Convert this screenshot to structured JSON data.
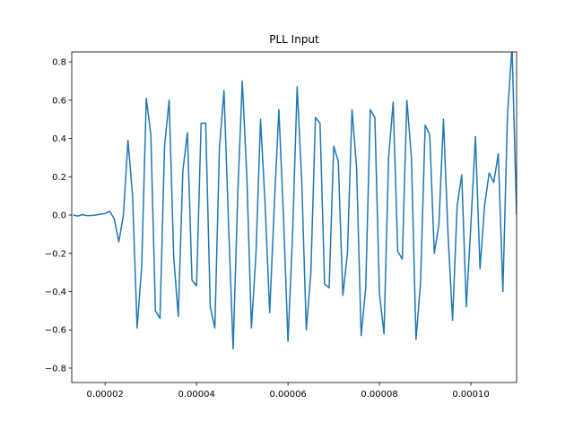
{
  "chart_data": {
    "type": "line",
    "title": "PLL Input",
    "x": [
      1.3e-05,
      1.4e-05,
      1.5e-05,
      1.6e-05,
      1.7e-05,
      1.8e-05,
      1.9e-05,
      2e-05,
      2.1e-05,
      2.2e-05,
      2.3e-05,
      2.4e-05,
      2.5e-05,
      2.6e-05,
      2.7e-05,
      2.8e-05,
      2.9e-05,
      3e-05,
      3.1e-05,
      3.2e-05,
      3.3e-05,
      3.4e-05,
      3.5e-05,
      3.6e-05,
      3.7e-05,
      3.8e-05,
      3.9e-05,
      4e-05,
      4.1e-05,
      4.2e-05,
      4.3e-05,
      4.4e-05,
      4.5e-05,
      4.6e-05,
      4.7e-05,
      4.8e-05,
      4.9e-05,
      5e-05,
      5.1e-05,
      5.2e-05,
      5.3e-05,
      5.4e-05,
      5.5e-05,
      5.6e-05,
      5.7e-05,
      5.8e-05,
      5.9e-05,
      6e-05,
      6.1e-05,
      6.2e-05,
      6.3e-05,
      6.4e-05,
      6.5e-05,
      6.6e-05,
      6.7e-05,
      6.8e-05,
      6.9e-05,
      7e-05,
      7.1e-05,
      7.2e-05,
      7.3e-05,
      7.4e-05,
      7.5e-05,
      7.6e-05,
      7.7e-05,
      7.8e-05,
      7.9e-05,
      8e-05,
      8.1e-05,
      8.2e-05,
      8.3e-05,
      8.4e-05,
      8.5e-05,
      8.6e-05,
      8.7e-05,
      8.8e-05,
      8.9e-05,
      9e-05,
      9.1e-05,
      9.2e-05,
      9.3e-05,
      9.4e-05,
      9.5e-05,
      9.6e-05,
      9.7e-05,
      9.8e-05,
      9.9e-05,
      0.0001,
      0.000101,
      0.000102,
      0.000103,
      0.000104,
      0.000105,
      0.000106,
      0.000107,
      0.000108,
      0.000109,
      0.00011
    ],
    "series": [
      {
        "color": "#1f77b4",
        "values": [
          0,
          -0.005,
          0.002,
          -0.003,
          -0.002,
          0,
          0.005,
          0.008,
          0.02,
          -0.02,
          -0.14,
          0.0,
          0.39,
          0.1,
          -0.59,
          -0.27,
          0.61,
          0.42,
          -0.5,
          -0.54,
          0.36,
          0.6,
          -0.22,
          -0.53,
          0.23,
          0.43,
          -0.34,
          -0.37,
          0.48,
          0.48,
          -0.48,
          -0.59,
          0.35,
          0.65,
          -0.05,
          -0.7,
          0.1,
          0.7,
          0.2,
          -0.59,
          -0.2,
          0.5,
          0.05,
          -0.51,
          0.05,
          0.55,
          0.0,
          -0.66,
          -0.1,
          0.67,
          0.18,
          -0.6,
          -0.3,
          0.51,
          0.48,
          -0.36,
          -0.38,
          0.36,
          0.28,
          -0.42,
          -0.2,
          0.55,
          0.25,
          -0.63,
          -0.38,
          0.55,
          0.51,
          -0.41,
          -0.62,
          0.3,
          0.59,
          -0.19,
          -0.23,
          0.6,
          0.3,
          -0.65,
          -0.35,
          0.47,
          0.42,
          -0.2,
          -0.05,
          0.5,
          -0.1,
          -0.55,
          0.05,
          0.21,
          -0.48,
          -0.05,
          0.41,
          -0.28,
          0.05,
          0.22,
          0.17,
          0.32,
          -0.4,
          0.52,
          0.88,
          0.0
        ]
      }
    ],
    "xlim": [
      1.27e-05,
      0.00011
    ],
    "xticks": [
      {
        "value": 2e-05,
        "label": "0.00002"
      },
      {
        "value": 4e-05,
        "label": "0.00004"
      },
      {
        "value": 6e-05,
        "label": "0.00006"
      },
      {
        "value": 8e-05,
        "label": "0.00008"
      },
      {
        "value": 0.0001,
        "label": "0.00010"
      }
    ],
    "ylim": [
      -0.875,
      0.852
    ],
    "yticks": [
      {
        "value": -0.8,
        "label": "−0.8"
      },
      {
        "value": -0.6,
        "label": "−0.6"
      },
      {
        "value": -0.4,
        "label": "−0.4"
      },
      {
        "value": -0.2,
        "label": "−0.2"
      },
      {
        "value": 0,
        "label": "0.0"
      },
      {
        "value": 0.2,
        "label": "0.2"
      },
      {
        "value": 0.4,
        "label": "0.4"
      },
      {
        "value": 0.6,
        "label": "0.6"
      },
      {
        "value": 0.8,
        "label": "0.8"
      }
    ],
    "grid": false
  }
}
